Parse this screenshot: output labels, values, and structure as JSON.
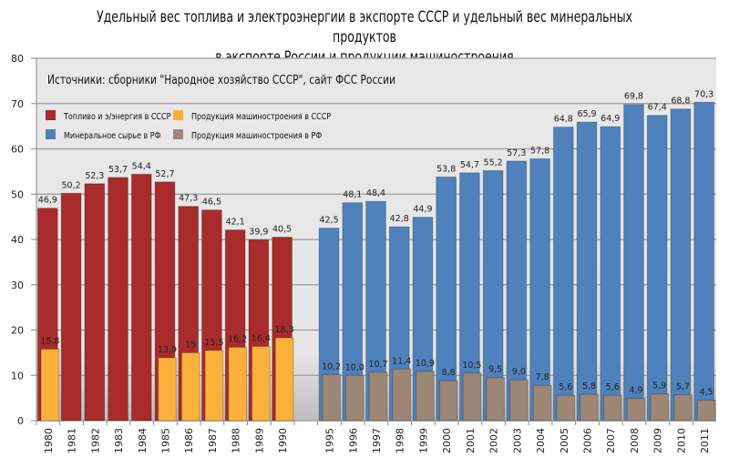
{
  "chart_data": {
    "type": "bar",
    "title_lines": [
      "Удельный вес топлива и электроэнергии в экспорте СССР и удельный вес минеральных продуктов",
      "в экспорте России и продукции машиностроения"
    ],
    "annotation": "Источники: сборники \"Народное хозяйство СССР\", сайт ФСС России",
    "categories": [
      "1980",
      "1981",
      "1982",
      "1983",
      "1984",
      "1985",
      "1986",
      "1987",
      "1988",
      "1989",
      "1990",
      "",
      "1995",
      "1996",
      "1997",
      "1998",
      "1999",
      "2000",
      "2001",
      "2002",
      "2003",
      "2004",
      "2005",
      "2006",
      "2007",
      "2008",
      "2009",
      "2010",
      "2011"
    ],
    "ylim": [
      0,
      80
    ],
    "yticks": [
      0,
      10,
      20,
      30,
      40,
      50,
      60,
      70,
      80
    ],
    "grid": true,
    "legend_placement": "top-left",
    "series": [
      {
        "name": "Топливо и э/энергия в СССР",
        "color": "#a92b2b",
        "wide": true,
        "values": [
          46.9,
          50.2,
          52.3,
          53.7,
          54.4,
          52.7,
          47.3,
          46.5,
          42.1,
          39.9,
          40.5,
          null,
          null,
          null,
          null,
          null,
          null,
          null,
          null,
          null,
          null,
          null,
          null,
          null,
          null,
          null,
          null,
          null,
          null
        ],
        "labels": [
          "46,9",
          "50,2",
          "52,3",
          "53,7",
          "54,4",
          "52,7",
          "47,3",
          "46,5",
          "42,1",
          "39,9",
          "40,5"
        ]
      },
      {
        "name": "Продукция машиностроения в СССР",
        "color": "#fbb03b",
        "wide": false,
        "values": [
          15.8,
          null,
          null,
          null,
          null,
          13.9,
          15,
          15.5,
          16.2,
          16.4,
          18.3,
          null,
          null,
          null,
          null,
          null,
          null,
          null,
          null,
          null,
          null,
          null,
          null,
          null,
          null,
          null,
          null,
          null,
          null
        ],
        "labels": [
          "15,8",
          "",
          "",
          "",
          "",
          "13,9",
          "15",
          "15,5",
          "16,2",
          "16,4",
          "18,3"
        ]
      },
      {
        "name": "Минеральное сырье в РФ",
        "color": "#4f81bd",
        "wide": true,
        "values": [
          null,
          null,
          null,
          null,
          null,
          null,
          null,
          null,
          null,
          null,
          null,
          null,
          42.5,
          48.1,
          48.4,
          42.8,
          44.9,
          53.8,
          54.7,
          55.2,
          57.3,
          57.8,
          64.8,
          65.9,
          64.9,
          69.8,
          67.4,
          68.8,
          70.3
        ],
        "labels": [
          "",
          "",
          "",
          "",
          "",
          "",
          "",
          "",
          "",
          "",
          "",
          "",
          "42,5",
          "48,1",
          "48,4",
          "42,8",
          "44,9",
          "53,8",
          "54,7",
          "55,2",
          "57,3",
          "57,8",
          "64,8",
          "65,9",
          "64,9",
          "69,8",
          "67,4",
          "68,8",
          "70,3"
        ]
      },
      {
        "name": "Продукция машиностроения в РФ",
        "color": "#9c8676",
        "wide": false,
        "values": [
          null,
          null,
          null,
          null,
          null,
          null,
          null,
          null,
          null,
          null,
          null,
          null,
          10.2,
          10.0,
          10.7,
          11.4,
          10.9,
          8.8,
          10.5,
          9.5,
          9.0,
          7.8,
          5.6,
          5.8,
          5.6,
          4.9,
          5.9,
          5.7,
          4.5
        ],
        "labels": [
          "",
          "",
          "",
          "",
          "",
          "",
          "",
          "",
          "",
          "",
          "",
          "",
          "10,2",
          "10,0",
          "10,7",
          "11,4",
          "10,9",
          "8,8",
          "10,5",
          "9,5",
          "9,0",
          "7,8",
          "5,6",
          "5,8",
          "5,6",
          "4,9",
          "5,9",
          "5,7",
          "4,5"
        ]
      }
    ]
  }
}
